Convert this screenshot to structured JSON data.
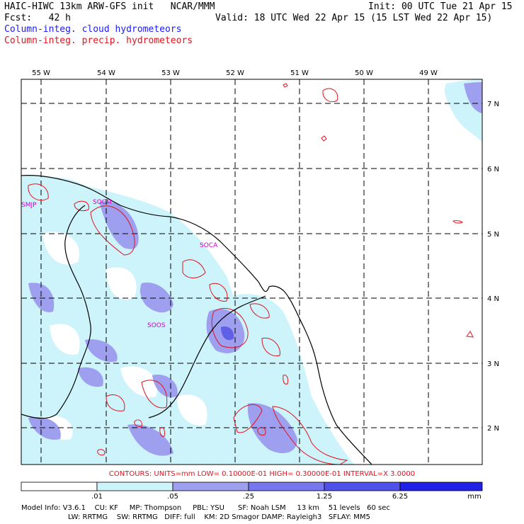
{
  "header": {
    "title": "HAIC-HIWC 13km ARW-GFS init   NCAR/MMM",
    "init": "Init: 00 UTC Tue 21 Apr 15",
    "fcst": "Fcst:   42 h",
    "valid": "Valid: 18 UTC Wed 22 Apr 15 (15 LST Wed 22 Apr 15)",
    "field1": "Column-integ. cloud hydrometeors",
    "field2": "Column-integ. precip. hydrometeors"
  },
  "map": {
    "lon_labels": [
      "55 W",
      "54 W",
      "53 W",
      "52 W",
      "51 W",
      "50 W",
      "49 W"
    ],
    "lat_labels": [
      "7 N",
      "6 N",
      "5 N",
      "4 N",
      "3 N",
      "2 N"
    ],
    "stations": [
      "SMJP",
      "SOCM",
      "SOCA",
      "SOOS"
    ],
    "colors": {
      "fill_light": "#cdf3fb",
      "fill_medium": "#9f9ff0",
      "fill_dark": "#5f5fe8",
      "contour": "#e0141e",
      "coast": "#000000"
    }
  },
  "contours_text": "CONTOURS:  UNITS=mm  LOW= 0.10000E-01  HIGH= 0.30000E-01  INTERVAL=X  3.0000",
  "colorbar": {
    "labels": [
      ".01",
      ".05",
      ".25",
      "1.25",
      "6.25",
      "mm"
    ],
    "colors": [
      "#ffffff",
      "#cdf3fb",
      "#9f9ff0",
      "#7676ee",
      "#5050ea",
      "#2020e6"
    ]
  },
  "footer": {
    "line1": "Model Info: V3.6.1    CU: KF     MP: Thompson     PBL: YSU      SF: Noah LSM     13 km    51 levels   60 sec",
    "line2": "LW: RRTMG    SW: RRTMG   DIFF: full    KM: 2D Smagor DAMP: Rayleigh3   SFLAY: MM5"
  }
}
